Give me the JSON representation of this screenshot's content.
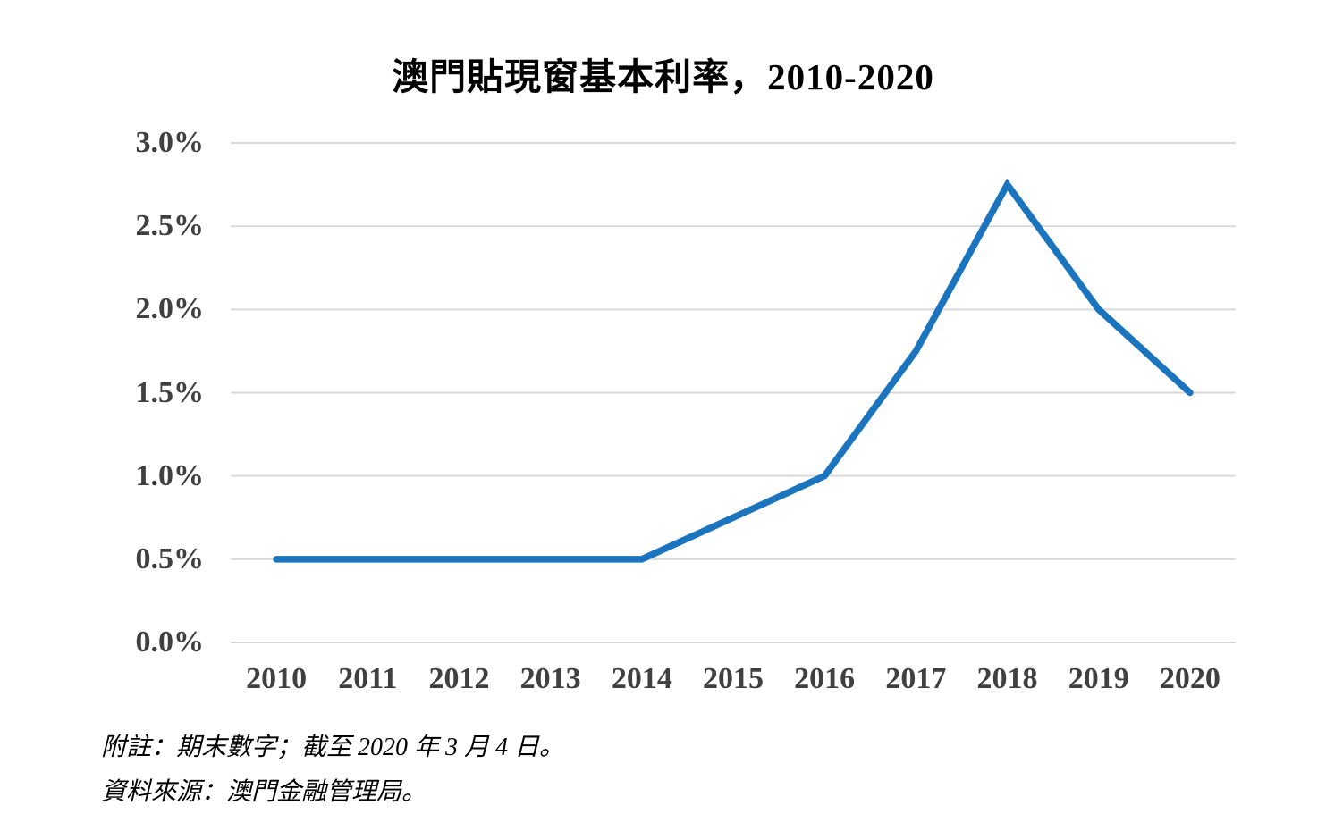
{
  "title": "澳門貼現窗基本利率，2010-2020",
  "notes": {
    "note1": "附註：期末數字；截至 2020 年 3 月 4 日。",
    "note2": "資料來源：澳門金融管理局。"
  },
  "chart_data": {
    "type": "line",
    "title": "澳門貼現窗基本利率，2010-2020",
    "categories": [
      "2010",
      "2011",
      "2012",
      "2013",
      "2014",
      "2015",
      "2016",
      "2017",
      "2018",
      "2019",
      "2020"
    ],
    "values": [
      0.5,
      0.5,
      0.5,
      0.5,
      0.5,
      0.75,
      1.0,
      1.75,
      2.75,
      2.0,
      1.5
    ],
    "unit": "%",
    "xlabel": "",
    "ylabel": "",
    "ylim": [
      0.0,
      3.0
    ],
    "ytick_step": 0.5,
    "ytick_labels_top_to_bottom": [
      "3.0%",
      "2.5%",
      "2.0%",
      "1.5%",
      "1.0%",
      "0.5%",
      "0.0%"
    ],
    "grid": true,
    "legend": "none",
    "line_color": "#1B74BE",
    "gridline_color": "#D9D9D9",
    "axis_label_color": "#404040"
  }
}
